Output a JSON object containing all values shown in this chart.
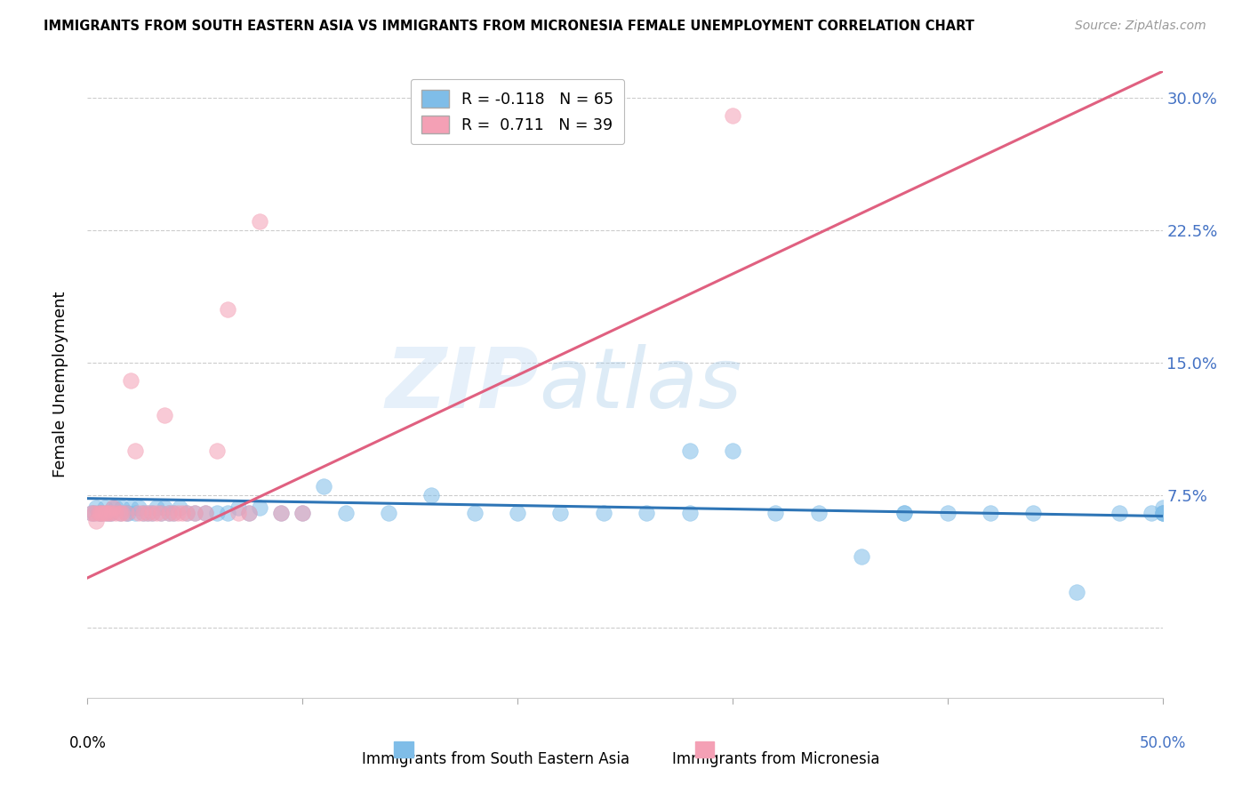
{
  "title": "IMMIGRANTS FROM SOUTH EASTERN ASIA VS IMMIGRANTS FROM MICRONESIA FEMALE UNEMPLOYMENT CORRELATION CHART",
  "source": "Source: ZipAtlas.com",
  "ylabel": "Female Unemployment",
  "ytick_vals": [
    0.0,
    0.075,
    0.15,
    0.225,
    0.3
  ],
  "ytick_labels": [
    "",
    "7.5%",
    "15.0%",
    "22.5%",
    "30.0%"
  ],
  "xlim": [
    0.0,
    0.5
  ],
  "ylim": [
    -0.04,
    0.315
  ],
  "watermark_zip": "ZIP",
  "watermark_atlas": "atlas",
  "legend_line1": "R = -0.118   N = 65",
  "legend_line2": "R =  0.711   N = 39",
  "color_blue": "#7fbde8",
  "color_pink": "#f4a0b5",
  "color_blue_line": "#2e75b6",
  "color_pink_line": "#e06080",
  "color_ytick": "#4472c4",
  "color_xtick_right": "#4472c4",
  "blue_x": [
    0.002,
    0.003,
    0.004,
    0.005,
    0.006,
    0.007,
    0.008,
    0.009,
    0.01,
    0.011,
    0.012,
    0.013,
    0.015,
    0.016,
    0.018,
    0.019,
    0.02,
    0.022,
    0.024,
    0.026,
    0.028,
    0.03,
    0.032,
    0.034,
    0.036,
    0.038,
    0.04,
    0.043,
    0.046,
    0.05,
    0.055,
    0.06,
    0.065,
    0.07,
    0.075,
    0.08,
    0.09,
    0.1,
    0.11,
    0.12,
    0.14,
    0.16,
    0.18,
    0.2,
    0.22,
    0.24,
    0.26,
    0.28,
    0.3,
    0.32,
    0.34,
    0.36,
    0.38,
    0.4,
    0.42,
    0.44,
    0.46,
    0.48,
    0.495,
    0.5,
    0.5,
    0.5,
    0.5,
    0.28,
    0.38
  ],
  "blue_y": [
    0.065,
    0.065,
    0.068,
    0.065,
    0.065,
    0.065,
    0.068,
    0.065,
    0.065,
    0.065,
    0.068,
    0.068,
    0.065,
    0.068,
    0.065,
    0.065,
    0.068,
    0.065,
    0.068,
    0.065,
    0.065,
    0.065,
    0.068,
    0.065,
    0.068,
    0.065,
    0.065,
    0.068,
    0.065,
    0.065,
    0.065,
    0.065,
    0.065,
    0.068,
    0.065,
    0.068,
    0.065,
    0.065,
    0.08,
    0.065,
    0.065,
    0.075,
    0.065,
    0.065,
    0.065,
    0.065,
    0.065,
    0.065,
    0.1,
    0.065,
    0.065,
    0.04,
    0.065,
    0.065,
    0.065,
    0.065,
    0.02,
    0.065,
    0.065,
    0.065,
    0.065,
    0.068,
    0.065,
    0.1,
    0.065
  ],
  "pink_x": [
    0.002,
    0.003,
    0.004,
    0.005,
    0.006,
    0.007,
    0.008,
    0.009,
    0.01,
    0.011,
    0.012,
    0.013,
    0.015,
    0.016,
    0.018,
    0.02,
    0.022,
    0.024,
    0.026,
    0.028,
    0.03,
    0.032,
    0.034,
    0.036,
    0.038,
    0.04,
    0.042,
    0.044,
    0.046,
    0.05,
    0.055,
    0.06,
    0.065,
    0.07,
    0.075,
    0.08,
    0.09,
    0.1,
    0.3
  ],
  "pink_y": [
    0.065,
    0.065,
    0.06,
    0.065,
    0.065,
    0.065,
    0.065,
    0.065,
    0.065,
    0.065,
    0.068,
    0.065,
    0.065,
    0.065,
    0.065,
    0.14,
    0.1,
    0.065,
    0.065,
    0.065,
    0.065,
    0.065,
    0.065,
    0.12,
    0.065,
    0.065,
    0.065,
    0.065,
    0.065,
    0.065,
    0.065,
    0.1,
    0.18,
    0.065,
    0.065,
    0.23,
    0.065,
    0.065,
    0.29
  ],
  "blue_line_x0": 0.0,
  "blue_line_x1": 0.5,
  "blue_line_y0": 0.073,
  "blue_line_y1": 0.063,
  "pink_line_x0": 0.0,
  "pink_line_x1": 0.5,
  "pink_line_y0": 0.028,
  "pink_line_y1": 0.315
}
